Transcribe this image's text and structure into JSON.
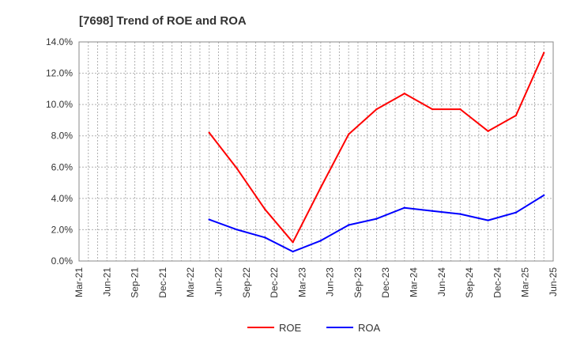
{
  "chart_data": {
    "type": "line",
    "title": "[7698]  Trend of ROE and ROA",
    "xlabel": "",
    "ylabel": "",
    "categories": [
      "Mar-21",
      "Jun-21",
      "Sep-21",
      "Dec-21",
      "Mar-22",
      "Jun-22",
      "Sep-22",
      "Dec-22",
      "Mar-23",
      "Jun-23",
      "Sep-23",
      "Dec-23",
      "Mar-24",
      "Jun-24",
      "Sep-24",
      "Dec-24",
      "Mar-25",
      "Jun-25"
    ],
    "ylim": [
      0,
      14
    ],
    "yticks": [
      0,
      2,
      4,
      6,
      8,
      10,
      12,
      14
    ],
    "ytick_labels": [
      "0.0%",
      "2.0%",
      "4.0%",
      "6.0%",
      "8.0%",
      "10.0%",
      "12.0%",
      "14.0%"
    ],
    "grid": true,
    "legend_position": "bottom-center",
    "series": [
      {
        "name": "ROE",
        "color": "#ff0000",
        "x": [
          "May-22",
          "Aug-22",
          "Nov-22",
          "Feb-23",
          "May-23",
          "Aug-23",
          "Nov-23",
          "Feb-24",
          "May-24",
          "Aug-24",
          "Nov-24",
          "Feb-25",
          "May-25"
        ],
        "values": [
          8.2,
          5.9,
          3.3,
          1.2,
          4.7,
          8.1,
          9.7,
          10.7,
          9.7,
          9.7,
          8.3,
          9.3,
          13.3
        ]
      },
      {
        "name": "ROA",
        "color": "#0000ff",
        "x": [
          "May-22",
          "Aug-22",
          "Nov-22",
          "Feb-23",
          "May-23",
          "Aug-23",
          "Nov-23",
          "Feb-24",
          "May-24",
          "Aug-24",
          "Nov-24",
          "Feb-25",
          "May-25"
        ],
        "values": [
          2.65,
          2.0,
          1.5,
          0.6,
          1.3,
          2.3,
          2.7,
          3.4,
          3.2,
          3.0,
          2.6,
          3.1,
          4.2
        ]
      }
    ]
  }
}
